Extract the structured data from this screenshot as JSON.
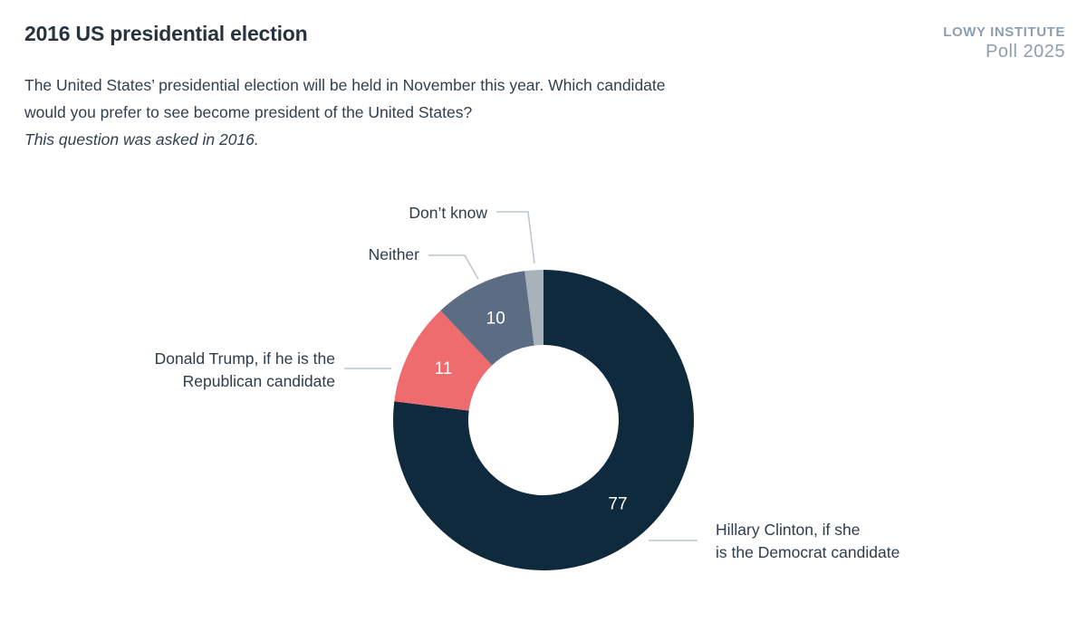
{
  "header": {
    "title": "2016 US presidential election",
    "logo": {
      "line1": "LOWY INSTITUTE",
      "line2": "Poll 2025",
      "color": "#8e9eb1"
    }
  },
  "question": {
    "line1": "The United States’ presidential election will be held in November this year. Which candidate",
    "line2": "would you prefer to see become president of the United States?",
    "note": "This question was asked in 2016."
  },
  "chart_data": {
    "type": "pie",
    "subtype": "donut",
    "title": "2016 US presidential election",
    "unit": "percent",
    "direction": "clockwise",
    "start_angle_deg": 0,
    "value_label_color": "#ffffff",
    "connector_color": "#bac5cf",
    "segments": [
      {
        "label": "Hillary Clinton, if she is the Democrat candidate",
        "callout_lines": [
          "Hillary Clinton, if she",
          "is the Democrat candidate"
        ],
        "value": 77,
        "show_value": true,
        "color": "#0e2a3c"
      },
      {
        "label": "Donald Trump, if he is the Republican candidate",
        "callout_lines": [
          "Donald Trump, if he is the",
          "Republican candidate"
        ],
        "value": 11,
        "show_value": true,
        "color": "#ee6b6e"
      },
      {
        "label": "Neither",
        "callout_lines": [
          "Neither"
        ],
        "value": 10,
        "show_value": true,
        "color": "#5c6c82"
      },
      {
        "label": "Don’t know",
        "callout_lines": [
          "Don’t know"
        ],
        "value": 2,
        "show_value": false,
        "color": "#a7b2ba"
      }
    ]
  }
}
